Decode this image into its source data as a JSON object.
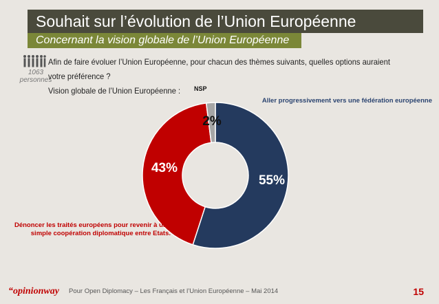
{
  "header": {
    "title": "Souhait sur l’évolution de l’Union Européenne",
    "subtitle": "Concernant la vision globale de l’Union Européenne"
  },
  "sample": {
    "count": "1063",
    "unit": "personnes"
  },
  "question": {
    "line1": "Afin de faire évoluer l’Union Européenne, pour chacun des thèmes suivants, quelles options auraient votre préférence ?",
    "line2": "Vision globale de l’Union Européenne :"
  },
  "chart_data": {
    "type": "pie",
    "style": "donut",
    "slices": [
      {
        "label": "Aller progressivement vers une fédération européenne",
        "value": 55,
        "display": "55%",
        "color": "#243a5e"
      },
      {
        "label": "Dénoncer les traités européens pour revenir à une simple coopération diplomatique entre Etats.",
        "value": 43,
        "display": "43%",
        "color": "#c00000"
      },
      {
        "label": "NSP",
        "value": 2,
        "display": "2%",
        "color": "#a6a6a6"
      }
    ]
  },
  "footer": {
    "logo": "opinionway",
    "source": "Pour Open Diplomacy – Les Français et l’Union Européenne – Mai 2014",
    "page": "15"
  }
}
